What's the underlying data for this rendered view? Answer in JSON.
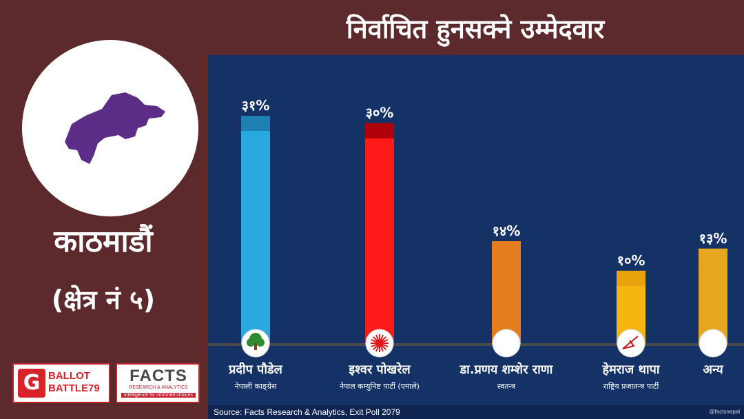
{
  "title": "निर्वाचित हुनसक्ने उम्मेदवार",
  "district": "काठमाडौं",
  "constituency": "(क्षेत्र नं ५)",
  "logos": {
    "galaxy": "BALLOT BATTLE79",
    "facts_name": "FACTS",
    "facts_sub": "RESEARCH & ANALYTICS",
    "facts_tagline": "intelligence for informed choices"
  },
  "source": "Source: Facts Research & Analytics, Exit Poll 2079",
  "handle": "@factsnepal",
  "colors": {
    "background": "#5c2a2d",
    "panel": "#143266",
    "map": "#5b2d86"
  },
  "chart_data": {
    "type": "bar",
    "title": "निर्वाचित हुनसक्ने उम्मेदवार",
    "categories": [
      "प्रदीप पौडेल",
      "इश्वर पोखरेल",
      "डा.प्रणय शम्शेर राणा",
      "हेमराज थापा",
      "अन्य"
    ],
    "parties": [
      "नेपाली काङ्ग्रेस",
      "नेपाल कम्युनिष्ट पार्टी (एमाले)",
      "स्वतन्त्र",
      "राष्ट्रिय प्रजातन्त्र पार्टी",
      ""
    ],
    "values": [
      31,
      30,
      14,
      10,
      13
    ],
    "value_labels": [
      "३१%",
      "३०%",
      "१४%",
      "१०%",
      "१३%"
    ],
    "bar_colors": [
      "#29a9e0",
      "#ff1a1a",
      "#e57e1e",
      "#f7b50f",
      "#e6a71f"
    ],
    "bar_top_colors": [
      "#1f7fb0",
      "#b0000a",
      "#e57e1e",
      "#e8a20c",
      "#e6a71f"
    ],
    "symbols": [
      "tree-icon",
      "sun-icon",
      "blank-circle-icon",
      "plough-icon",
      "blank-circle-icon"
    ],
    "ylim": [
      0,
      31
    ],
    "grid": false,
    "legend": "none"
  }
}
